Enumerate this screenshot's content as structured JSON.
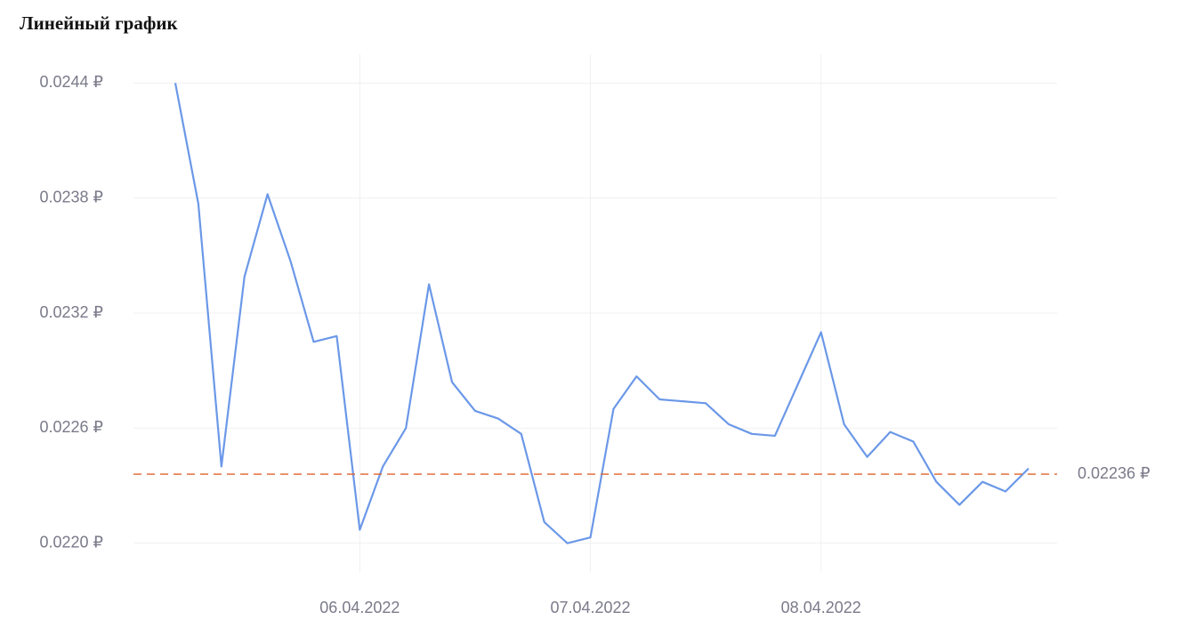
{
  "chart_data": {
    "type": "line",
    "title": "Линейный график",
    "categories": [
      null,
      null,
      null,
      null,
      null,
      null,
      null,
      null,
      "06.04.2022",
      null,
      null,
      null,
      null,
      null,
      null,
      null,
      null,
      null,
      "07.04.2022",
      null,
      null,
      null,
      null,
      null,
      null,
      null,
      null,
      null,
      "08.04.2022",
      null,
      null,
      null,
      null,
      null,
      null,
      null,
      null,
      null
    ],
    "values": [
      0.0244,
      0.02377,
      0.0224,
      0.02339,
      0.02382,
      0.02347,
      0.02305,
      0.02308,
      0.02207,
      0.0224,
      0.0226,
      0.02335,
      0.02284,
      0.02269,
      0.02265,
      0.02257,
      0.02211,
      0.022,
      0.02203,
      0.0227,
      0.02287,
      0.02275,
      0.02274,
      0.02273,
      0.02262,
      0.02257,
      0.02256,
      0.02283,
      0.0231,
      0.02262,
      0.02245,
      0.02258,
      0.02253,
      0.02232,
      0.0222,
      0.02232,
      0.02227,
      0.02239
    ],
    "color": "#6b98e8",
    "ylim": [
      0.02185,
      0.02455
    ],
    "yticks": [
      {
        "value": 0.022,
        "label": "0.0220 ₽"
      },
      {
        "value": 0.0226,
        "label": "0.0226 ₽"
      },
      {
        "value": 0.0232,
        "label": "0.0232 ₽"
      },
      {
        "value": 0.0238,
        "label": "0.0238 ₽"
      },
      {
        "value": 0.0244,
        "label": "0.0244 ₽"
      }
    ],
    "grid": true,
    "annotation": {
      "value": 0.02236,
      "label": "0.02236 ₽",
      "color": "#e0622a"
    }
  }
}
